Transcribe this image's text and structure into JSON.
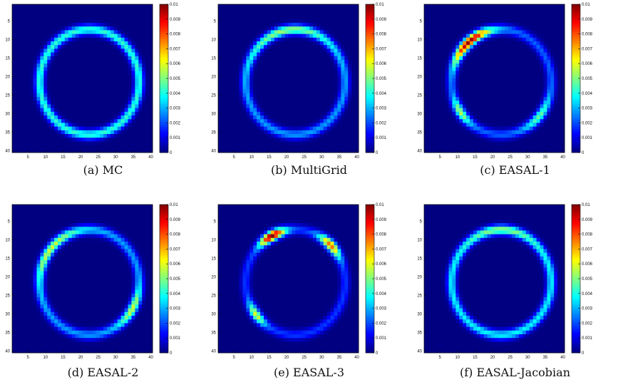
{
  "figure": {
    "panels": [
      {
        "id": "a",
        "caption": "(a) MC"
      },
      {
        "id": "b",
        "caption": "(b) MultiGrid"
      },
      {
        "id": "c",
        "caption": "(c) EASAL-1"
      },
      {
        "id": "d",
        "caption": "(d) EASAL-2"
      },
      {
        "id": "e",
        "caption": "(e) EASAL-3"
      },
      {
        "id": "f",
        "caption": "(f) EASAL-Jacobian"
      }
    ]
  },
  "chart_data": [
    {
      "type": "heatmap",
      "panel": "a",
      "xlim": [
        1,
        40
      ],
      "ylim": [
        1,
        40
      ],
      "y_direction": "down",
      "x_ticks": [
        5,
        10,
        15,
        20,
        25,
        30,
        35,
        40
      ],
      "y_ticks": [
        5,
        10,
        15,
        20,
        25,
        30,
        35,
        40
      ],
      "colorbar": {
        "range": [
          0,
          0.01
        ],
        "ticks": [
          "0",
          "0.001",
          "0.002",
          "0.003",
          "0.004",
          "0.005",
          "0.006",
          "0.007",
          "0.008",
          "0.009",
          "0.01"
        ]
      },
      "colormap": "jet",
      "ring": {
        "center": [
          22.5,
          21.5
        ],
        "radius": 14.2,
        "width": 1.3,
        "base": 0.0042,
        "hotspots": []
      }
    },
    {
      "type": "heatmap",
      "panel": "b",
      "xlim": [
        1,
        40
      ],
      "ylim": [
        1,
        40
      ],
      "y_direction": "down",
      "x_ticks": [
        5,
        10,
        15,
        20,
        25,
        30,
        35,
        40
      ],
      "y_ticks": [
        5,
        10,
        15,
        20,
        25,
        30,
        35,
        40
      ],
      "colorbar": {
        "range": [
          0,
          0.01
        ],
        "ticks": [
          "0",
          "0.001",
          "0.002",
          "0.003",
          "0.004",
          "0.005",
          "0.006",
          "0.007",
          "0.008",
          "0.009",
          "0.01"
        ]
      },
      "colormap": "jet",
      "ring": {
        "center": [
          22.5,
          21.5
        ],
        "radius": 14.2,
        "width": 1.3,
        "base": 0.0028,
        "hotspots": [
          {
            "angle_deg": 100,
            "spread_deg": 55,
            "gain": 0.0025
          }
        ]
      }
    },
    {
      "type": "heatmap",
      "panel": "c",
      "xlim": [
        1,
        40
      ],
      "ylim": [
        1,
        40
      ],
      "y_direction": "down",
      "x_ticks": [
        5,
        10,
        15,
        20,
        25,
        30,
        35,
        40
      ],
      "y_ticks": [
        5,
        10,
        15,
        20,
        25,
        30,
        35,
        40
      ],
      "colorbar": {
        "range": [
          0,
          0.01
        ],
        "ticks": [
          "0",
          "0.001",
          "0.002",
          "0.003",
          "0.004",
          "0.005",
          "0.006",
          "0.007",
          "0.008",
          "0.009",
          "0.01"
        ]
      },
      "colormap": "jet",
      "ring": {
        "center": [
          22.5,
          21.5
        ],
        "radius": 14.2,
        "width": 1.3,
        "base": 0.0022,
        "hotspots": [
          {
            "angle_deg": 130,
            "spread_deg": 28,
            "gain": 0.0076
          },
          {
            "angle_deg": 215,
            "spread_deg": 16,
            "gain": 0.0033
          },
          {
            "angle_deg": 320,
            "spread_deg": 22,
            "gain": 0.0025
          }
        ]
      }
    },
    {
      "type": "heatmap",
      "panel": "d",
      "xlim": [
        1,
        40
      ],
      "ylim": [
        1,
        40
      ],
      "y_direction": "down",
      "x_ticks": [
        5,
        10,
        15,
        20,
        25,
        30,
        35,
        40
      ],
      "y_ticks": [
        5,
        10,
        15,
        20,
        25,
        30,
        35,
        40
      ],
      "colorbar": {
        "range": [
          0,
          0.01
        ],
        "ticks": [
          "0",
          "0.001",
          "0.002",
          "0.003",
          "0.004",
          "0.005",
          "0.006",
          "0.007",
          "0.008",
          "0.009",
          "0.01"
        ]
      },
      "colormap": "jet",
      "ring": {
        "center": [
          22.5,
          21.5
        ],
        "radius": 14.2,
        "width": 1.3,
        "base": 0.0028,
        "hotspots": [
          {
            "angle_deg": 140,
            "spread_deg": 40,
            "gain": 0.003
          },
          {
            "angle_deg": 330,
            "spread_deg": 22,
            "gain": 0.003
          }
        ]
      }
    },
    {
      "type": "heatmap",
      "panel": "e",
      "xlim": [
        1,
        40
      ],
      "ylim": [
        1,
        40
      ],
      "y_direction": "down",
      "x_ticks": [
        5,
        10,
        15,
        20,
        25,
        30,
        35,
        40
      ],
      "y_ticks": [
        5,
        10,
        15,
        20,
        25,
        30,
        35,
        40
      ],
      "colorbar": {
        "range": [
          0,
          0.01
        ],
        "ticks": [
          "0",
          "0.001",
          "0.002",
          "0.003",
          "0.004",
          "0.005",
          "0.006",
          "0.007",
          "0.008",
          "0.009",
          "0.01"
        ]
      },
      "colormap": "jet",
      "ring": {
        "center": [
          22.5,
          21.5
        ],
        "radius": 14.2,
        "width": 1.3,
        "base": 0.0018,
        "hotspots": [
          {
            "angle_deg": 118,
            "spread_deg": 16,
            "gain": 0.0084
          },
          {
            "angle_deg": 45,
            "spread_deg": 16,
            "gain": 0.006
          },
          {
            "angle_deg": 218,
            "spread_deg": 14,
            "gain": 0.0042
          }
        ]
      }
    },
    {
      "type": "heatmap",
      "panel": "f",
      "xlim": [
        1,
        40
      ],
      "ylim": [
        1,
        40
      ],
      "y_direction": "down",
      "x_ticks": [
        5,
        10,
        15,
        20,
        25,
        30,
        35,
        40
      ],
      "y_ticks": [
        5,
        10,
        15,
        20,
        25,
        30,
        35,
        40
      ],
      "colorbar": {
        "range": [
          0,
          0.01
        ],
        "ticks": [
          "0",
          "0.001",
          "0.002",
          "0.003",
          "0.004",
          "0.005",
          "0.006",
          "0.007",
          "0.008",
          "0.009",
          "0.01"
        ]
      },
      "colormap": "jet",
      "ring": {
        "center": [
          22.5,
          21.5
        ],
        "radius": 14.2,
        "width": 1.3,
        "base": 0.0037,
        "hotspots": [
          {
            "angle_deg": 90,
            "spread_deg": 40,
            "gain": 0.0015
          }
        ]
      }
    }
  ]
}
